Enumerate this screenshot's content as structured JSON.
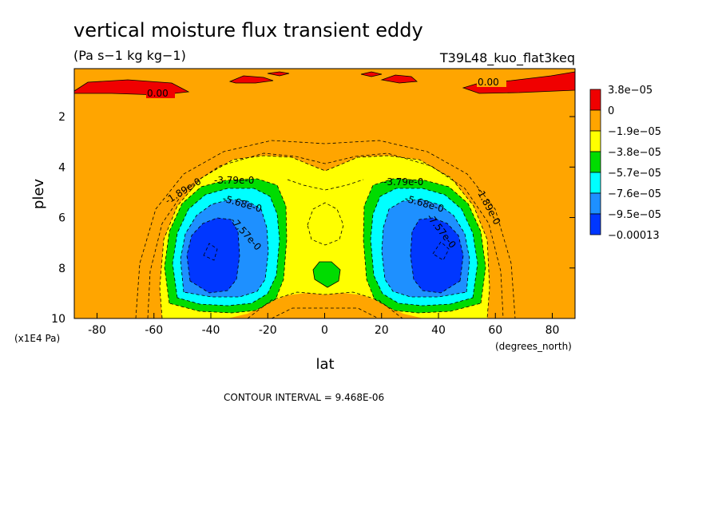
{
  "chart_data": {
    "type": "heatmap",
    "title": "vertical moisture flux transient eddy",
    "units": "(Pa s−1 kg kg−1)",
    "run_label": "T39L48_kuo_flat3keq",
    "xlabel": "lat",
    "xunits": "(degrees_north)",
    "ylabel": "plev",
    "yunits": "(x1E4 Pa)",
    "xlim": [
      -88,
      88
    ],
    "ylim": [
      0.1,
      10
    ],
    "y_inverted": true,
    "x_ticks": [
      -80,
      -60,
      -40,
      -20,
      0,
      20,
      40,
      60,
      80
    ],
    "y_ticks": [
      2,
      4,
      6,
      8,
      10
    ],
    "contour_interval_text": "CONTOUR INTERVAL = 9.468E-06",
    "contour_labels": [
      "0.00",
      "0.00",
      "-1.89e-0",
      "-3.79e-0",
      "-5.68e-0",
      "-7.57e-0",
      "-3.79e-0",
      "-5.68e-0",
      "-7.57e-0",
      "-1.89e-0"
    ],
    "legend": {
      "colors": [
        "#f00000",
        "#ffa500",
        "#ffff00",
        "#00dc00",
        "#00ffff",
        "#1e90ff",
        "#0037ff"
      ],
      "labels": [
        "3.8e−05",
        "0",
        "−1.9e−05",
        "−3.8e−05",
        "−5.7e−05",
        "−7.6e−05",
        "−9.5e−05",
        "−0.00013"
      ]
    },
    "regions": [
      {
        "level": "0 to 3.8e-05",
        "color": "#f00000",
        "description": "near-top band at high latitudes"
      },
      {
        "level": "-1.9e-05 to 0",
        "color": "#ffa500",
        "description": "background"
      },
      {
        "level": "-3.8e-05 to -1.9e-05",
        "color": "#ffff00",
        "description": "central lobe 30S-30N, 3-10"
      },
      {
        "level": "-5.7e-05 to -3.8e-05",
        "color": "#00dc00",
        "description": "ring around each extremum"
      },
      {
        "level": "-7.6e-05 to -5.7e-05",
        "color": "#00ffff",
        "description": "ring around each extremum"
      },
      {
        "level": "-9.5e-05 to -7.6e-05",
        "color": "#1e90ff",
        "description": "ring around each extremum"
      },
      {
        "level": "< -9.5e-05",
        "color": "#0037ff",
        "description": "cores near 40S and 40N at 6-9"
      }
    ]
  }
}
